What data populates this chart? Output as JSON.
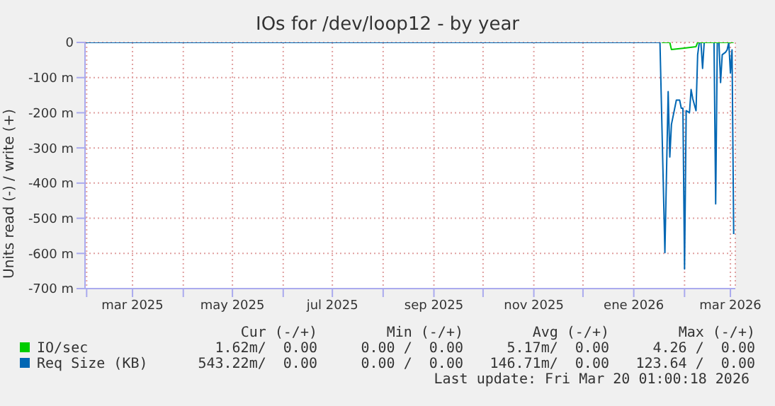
{
  "chart_data": {
    "type": "line",
    "title": "IOs for /dev/loop12 - by year",
    "ylabel": "Units read (-) / write (+)",
    "xlim": [
      "2025-01-31",
      "2026-03-04"
    ],
    "xticks": [
      {
        "value": "2025-02-01",
        "label": null
      },
      {
        "value": "2025-03-01",
        "label": "mar 2025"
      },
      {
        "value": "2025-04-01",
        "label": null
      },
      {
        "value": "2025-05-01",
        "label": "may 2025"
      },
      {
        "value": "2025-06-01",
        "label": null
      },
      {
        "value": "2025-07-01",
        "label": "jul 2025"
      },
      {
        "value": "2025-08-01",
        "label": null
      },
      {
        "value": "2025-09-01",
        "label": "sep 2025"
      },
      {
        "value": "2025-10-01",
        "label": null
      },
      {
        "value": "2025-11-01",
        "label": "nov 2025"
      },
      {
        "value": "2025-12-01",
        "label": null
      },
      {
        "value": "2026-01-01",
        "label": "ene 2026"
      },
      {
        "value": "2026-02-01",
        "label": null
      },
      {
        "value": "2026-03-01",
        "label": "mar 2026"
      }
    ],
    "ylim": [
      -700,
      0
    ],
    "yticks": [
      {
        "value": -700,
        "label": "-700 m"
      },
      {
        "value": -600,
        "label": "-600 m"
      },
      {
        "value": -500,
        "label": "-500 m"
      },
      {
        "value": -400,
        "label": "-400 m"
      },
      {
        "value": -300,
        "label": "-300 m"
      },
      {
        "value": -200,
        "label": "-200 m"
      },
      {
        "value": -100,
        "label": "-100 m"
      },
      0
    ],
    "grid": true,
    "legend": "bottom",
    "marker": "none",
    "line_style": "solid",
    "series": [
      {
        "name": "IO/sec",
        "color": "#00cc00",
        "x": [
          "2026-01-18",
          "2026-01-23",
          "2026-01-24",
          "2026-02-01",
          "2026-02-08",
          "2026-02-09",
          "2026-03-03"
        ],
        "values": [
          0,
          0,
          -20,
          -16,
          -12,
          0,
          0
        ]
      },
      {
        "name": "Req Size (KB)",
        "color": "#0066b3",
        "x": [
          "2025-01-31",
          "2026-01-17",
          "2026-01-20",
          "2026-01-22",
          "2026-01-23",
          "2026-01-24",
          "2026-01-27",
          "2026-01-29",
          "2026-01-30",
          "2026-01-31",
          "2026-02-01",
          "2026-02-02",
          "2026-02-04",
          "2026-02-05",
          "2026-02-06",
          "2026-02-08",
          "2026-02-09",
          "2026-02-10",
          "2026-02-11",
          "2026-02-12",
          "2026-02-13",
          "2026-02-19",
          "2026-02-20",
          "2026-02-21",
          "2026-02-22",
          "2026-02-23",
          "2026-02-24",
          "2026-02-26",
          "2026-02-27",
          "2026-02-28",
          "2026-03-01",
          "2026-03-02",
          "2026-03-03"
        ],
        "values": [
          0,
          0,
          -598,
          -140,
          -326,
          -233,
          -164,
          -164,
          -187,
          -187,
          -644,
          -194,
          -200,
          -134,
          -160,
          -194,
          -35,
          0,
          0,
          -74,
          0,
          0,
          -459,
          0,
          0,
          -114,
          -35,
          -28,
          -21,
          0,
          -87,
          -21,
          -545
        ]
      }
    ],
    "annotations": [
      "Cur (-/+)",
      "Min (-/+)",
      "Avg (-/+)",
      "Max (-/+)",
      "1.62m/  0.00",
      "0.00 /  0.00",
      "5.17m/  0.00",
      "4.26 /  0.00",
      "543.22m/  0.00",
      "0.00 /  0.00",
      "146.71m/  0.00",
      "123.64 /  0.00",
      "Last update: Fri Mar 20 01:00:18 2026"
    ]
  }
}
